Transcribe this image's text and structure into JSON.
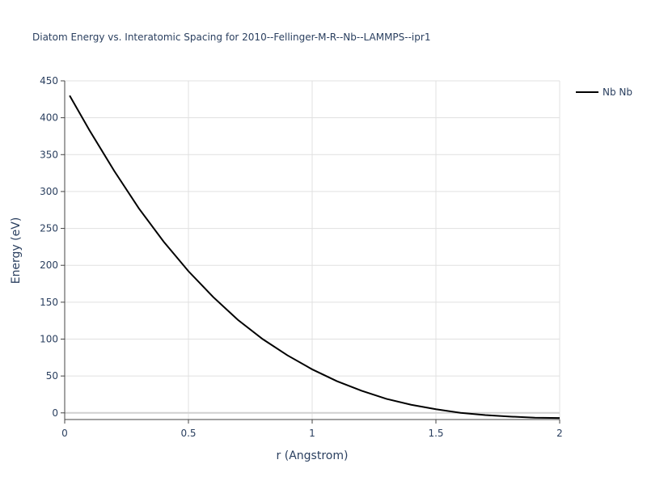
{
  "chart_data": {
    "type": "line",
    "title": "Diatom Energy vs. Interatomic Spacing for 2010--Fellinger-M-R--Nb--LAMMPS--ipr1",
    "xlabel": "r (Angstrom)",
    "ylabel": "Energy (eV)",
    "x": [
      0.02,
      0.1,
      0.2,
      0.3,
      0.4,
      0.5,
      0.6,
      0.7,
      0.8,
      0.9,
      1.0,
      1.1,
      1.2,
      1.3,
      1.4,
      1.5,
      1.6,
      1.7,
      1.8,
      1.9,
      2.0
    ],
    "series": [
      {
        "name": "Nb Nb",
        "color": "#000000",
        "values": [
          430,
          383,
          328,
          277,
          232,
          192,
          157,
          126,
          100,
          78,
          59,
          43,
          30,
          19,
          11,
          5,
          0,
          -3,
          -5,
          -6.5,
          -7
        ]
      }
    ],
    "xlim": [
      0,
      2
    ],
    "xticks": [
      0,
      0.5,
      1,
      1.5,
      2
    ],
    "ylim": [
      -9,
      450
    ],
    "yticks": [
      0,
      50,
      100,
      150,
      200,
      250,
      300,
      350,
      400,
      450
    ],
    "grid": true,
    "legend": "top-right"
  }
}
